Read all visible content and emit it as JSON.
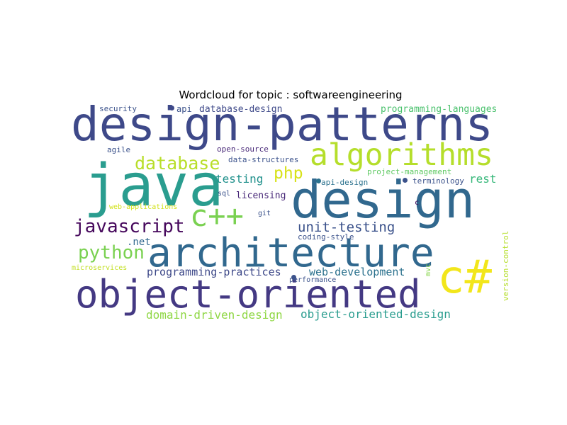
{
  "title": "Wordcloud for topic : softwareengineering",
  "words": [
    {
      "text": "design-patterns",
      "color": "#3e4989"
    },
    {
      "text": "java",
      "color": "#2a9d8f"
    },
    {
      "text": "design",
      "color": "#31688e"
    },
    {
      "text": "algorithms",
      "color": "#b5de2b"
    },
    {
      "text": "architecture",
      "color": "#31688e"
    },
    {
      "text": "object-oriented",
      "color": "#443983"
    },
    {
      "text": "c#",
      "color": "#f2e61b"
    },
    {
      "text": "c++",
      "color": "#7ad151"
    },
    {
      "text": "database",
      "color": "#b8de29"
    },
    {
      "text": "javascript",
      "color": "#46085c"
    },
    {
      "text": "python",
      "color": "#7ad151"
    },
    {
      "text": "php",
      "color": "#d8e219"
    },
    {
      "text": "testing",
      "color": "#21918c"
    },
    {
      "text": "rest",
      "color": "#35b779"
    },
    {
      "text": "unit-testing",
      "color": "#3b528b"
    },
    {
      "text": "licensing",
      "color": "#482878"
    },
    {
      "text": "programming-practices",
      "color": "#3e4989"
    },
    {
      "text": "web-development",
      "color": "#2c728e"
    },
    {
      "text": "domain-driven-design",
      "color": "#8fd744"
    },
    {
      "text": "object-oriented-design",
      "color": "#2a9d8f"
    },
    {
      "text": "programming-languages",
      "color": "#4ac16d"
    },
    {
      "text": "database-design",
      "color": "#3e4989"
    },
    {
      "text": "security",
      "color": "#3b528b"
    },
    {
      "text": "api",
      "color": "#3b528b"
    },
    {
      "text": "agile",
      "color": "#3b528b"
    },
    {
      "text": "open-source",
      "color": "#482878"
    },
    {
      "text": "data-structures",
      "color": "#3b528b"
    },
    {
      "text": "project-management",
      "color": "#5ec962"
    },
    {
      "text": "api-design",
      "color": "#2c728e"
    },
    {
      "text": "terminology",
      "color": "#3b528b"
    },
    {
      "text": "sql",
      "color": "#3b528b"
    },
    {
      "text": "web-applications",
      "color": "#d2e21b"
    },
    {
      "text": "git",
      "color": "#3b528b"
    },
    {
      "text": "c",
      "color": "#46085c"
    },
    {
      "text": ".net",
      "color": "#31688e"
    },
    {
      "text": "coding-style",
      "color": "#3b528b"
    },
    {
      "text": "microservices",
      "color": "#c2df23"
    },
    {
      "text": "performance",
      "color": "#3b528b"
    },
    {
      "text": "mvc",
      "color": "#86d549"
    },
    {
      "text": "version-control",
      "color": "#b5de2b"
    }
  ],
  "dots": [
    "#3e4989",
    "#3b528b",
    "#2c728e",
    "#3b528b"
  ]
}
